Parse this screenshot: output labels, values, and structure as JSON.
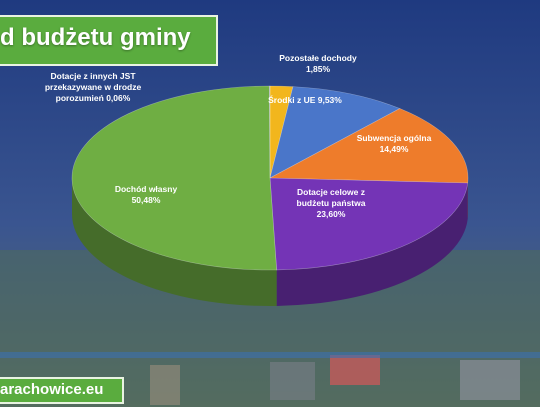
{
  "header": {
    "title": "d budżetu gminy"
  },
  "footer": {
    "site": "arachowice.eu"
  },
  "colors": {
    "banner": "#5aac3e",
    "background": "#2a3f78"
  },
  "chart_data": {
    "type": "pie",
    "title": "",
    "slices": [
      {
        "label": "Pozostałe dochody",
        "value": 1.85,
        "display": "1,85%",
        "color": "#f2b61d",
        "label_color": "#ffffff"
      },
      {
        "label": "Środki z UE",
        "value": 9.53,
        "display": "9,53%",
        "color": "#4a76c9",
        "label_color": "#ffffff"
      },
      {
        "label": "Subwencja ogólna",
        "value": 14.49,
        "display": "14,49%",
        "color": "#ee7c2b",
        "label_color": "#ffffff"
      },
      {
        "label": "Dotacje celowe z budżetu państwa",
        "value": 23.6,
        "display": "23,60%",
        "color": "#7434b6",
        "label_color": "#ffffff"
      },
      {
        "label": "Dochód własny",
        "value": 50.48,
        "display": "50,48%",
        "color": "#6fae43",
        "label_color": "#ffffff"
      },
      {
        "label": "Dotacje z innych JST przekazywane w drodze porozumień",
        "value": 0.06,
        "display": "0,06%",
        "color": "#a5a5a5",
        "label_color": "#ffffff"
      }
    ]
  }
}
